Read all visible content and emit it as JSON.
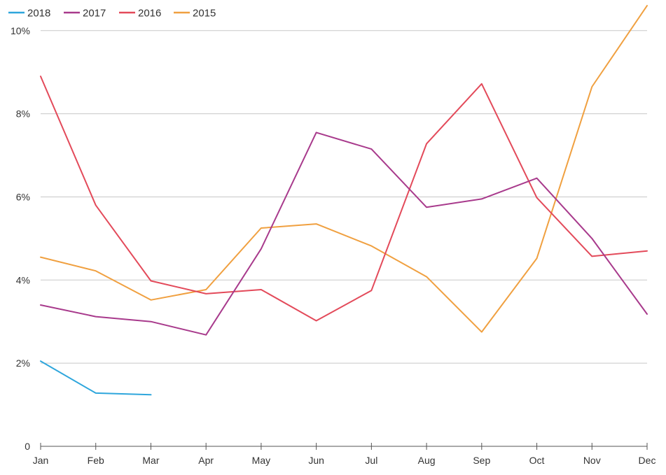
{
  "chart_data": {
    "type": "line",
    "title": "",
    "xlabel": "",
    "ylabel": "",
    "categories": [
      "Jan",
      "Feb",
      "Mar",
      "Apr",
      "May",
      "Jun",
      "Jul",
      "Aug",
      "Sep",
      "Oct",
      "Nov",
      "Dec"
    ],
    "ylim": [
      0,
      10.4
    ],
    "y_ticks": [
      0,
      2,
      4,
      6,
      8,
      10
    ],
    "y_tick_labels": [
      "0",
      "2%",
      "4%",
      "6%",
      "8%",
      "10%"
    ],
    "grid": true,
    "legend_position": "top-left",
    "series": [
      {
        "name": "2018",
        "color": "#2ea6dc",
        "values": [
          2.05,
          1.28,
          1.24,
          null,
          null,
          null,
          null,
          null,
          null,
          null,
          null,
          null
        ]
      },
      {
        "name": "2017",
        "color": "#a83a8c",
        "values": [
          3.4,
          3.12,
          3.0,
          2.68,
          4.75,
          7.55,
          7.15,
          5.75,
          5.95,
          6.45,
          5.0,
          3.18
        ]
      },
      {
        "name": "2016",
        "color": "#e34a5a",
        "values": [
          8.9,
          5.8,
          3.98,
          3.67,
          3.77,
          3.02,
          3.75,
          7.28,
          8.72,
          5.98,
          4.57,
          4.7
        ]
      },
      {
        "name": "2015",
        "color": "#f0a040",
        "values": [
          4.55,
          4.22,
          3.52,
          3.77,
          5.25,
          5.35,
          4.82,
          4.08,
          2.75,
          4.52,
          8.65,
          10.6
        ]
      }
    ]
  }
}
